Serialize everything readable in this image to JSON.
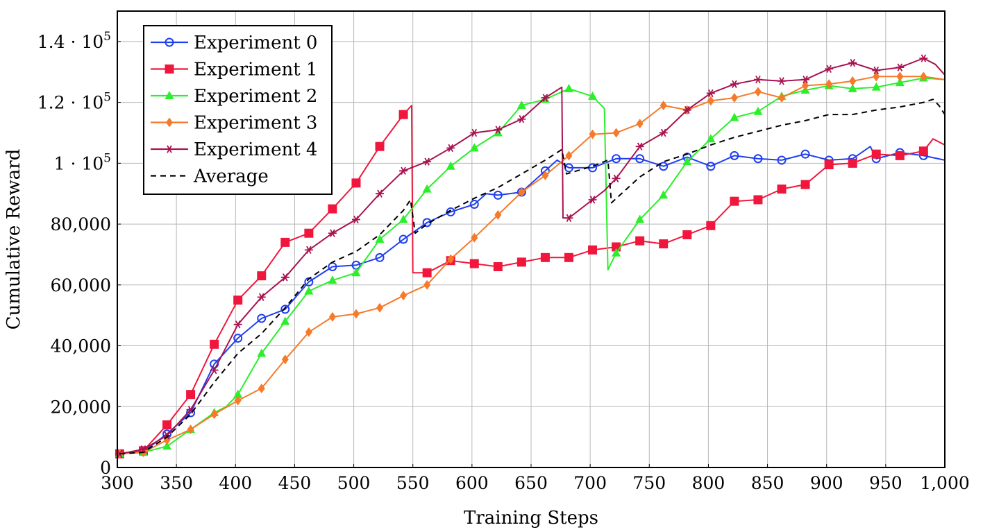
{
  "chart_data": {
    "type": "line",
    "title": "",
    "xlabel": "Training Steps",
    "ylabel": "Cumulative Reward",
    "xlim": [
      300,
      1000
    ],
    "ylim": [
      0,
      150000
    ],
    "grid": true,
    "legend_position": "top-left",
    "x_ticks": [
      300,
      350,
      400,
      450,
      500,
      550,
      600,
      650,
      700,
      750,
      800,
      850,
      900,
      950,
      1000
    ],
    "x_tick_labels": [
      "300",
      "350",
      "400",
      "450",
      "500",
      "550",
      "600",
      "650",
      "700",
      "750",
      "800",
      "850",
      "900",
      "950",
      "1,000"
    ],
    "y_ticks": [
      0,
      20000,
      40000,
      60000,
      80000,
      100000,
      120000,
      140000
    ],
    "y_tick_labels": [
      {
        "text": "0"
      },
      {
        "text": "20,000"
      },
      {
        "text": "40,000"
      },
      {
        "text": "60,000"
      },
      {
        "text": "80,000"
      },
      {
        "mantissa": "1 · 10",
        "exp": "5"
      },
      {
        "mantissa": "1.2 · 10",
        "exp": "5"
      },
      {
        "mantissa": "1.4 · 10",
        "exp": "5"
      }
    ],
    "series": [
      {
        "name": "Experiment 0",
        "color": "#1f3ff0",
        "marker": "circle",
        "dash": "",
        "points": [
          [
            302,
            4500
          ],
          [
            322,
            5200
          ],
          [
            342,
            11000
          ],
          [
            362,
            18000
          ],
          [
            382,
            34000
          ],
          [
            402,
            42500
          ],
          [
            422,
            49000
          ],
          [
            442,
            52000
          ],
          [
            462,
            61000
          ],
          [
            482,
            66000
          ],
          [
            502,
            66500
          ],
          [
            522,
            69000
          ],
          [
            542,
            75000
          ],
          [
            562,
            80500
          ],
          [
            582,
            84000
          ],
          [
            602,
            86500
          ],
          [
            612,
            90000
          ],
          [
            622,
            89500
          ],
          [
            642,
            90500
          ],
          [
            662,
            97500
          ],
          [
            672,
            101000
          ],
          [
            682,
            98500
          ],
          [
            702,
            98500
          ],
          [
            722,
            101500
          ],
          [
            742,
            101500
          ],
          [
            762,
            99000
          ],
          [
            782,
            102000
          ],
          [
            802,
            99000
          ],
          [
            822,
            102500
          ],
          [
            842,
            101500
          ],
          [
            862,
            101000
          ],
          [
            882,
            103000
          ],
          [
            902,
            101000
          ],
          [
            922,
            101500
          ],
          [
            937,
            105500
          ],
          [
            942,
            101500
          ],
          [
            962,
            103500
          ],
          [
            982,
            102500
          ],
          [
            1000,
            101000
          ]
        ]
      },
      {
        "name": "Experiment 1",
        "color": "#f0163c",
        "marker": "square",
        "dash": "",
        "points": [
          [
            302,
            4500
          ],
          [
            322,
            5500
          ],
          [
            342,
            14000
          ],
          [
            362,
            24000
          ],
          [
            382,
            40500
          ],
          [
            402,
            55000
          ],
          [
            422,
            63000
          ],
          [
            442,
            74000
          ],
          [
            462,
            77000
          ],
          [
            482,
            85000
          ],
          [
            502,
            93500
          ],
          [
            522,
            105500
          ],
          [
            542,
            116000
          ],
          [
            549,
            119000
          ],
          [
            550,
            64000
          ],
          [
            562,
            64000
          ],
          [
            582,
            68000
          ],
          [
            602,
            67000
          ],
          [
            622,
            66000
          ],
          [
            642,
            67500
          ],
          [
            662,
            69000
          ],
          [
            682,
            69000
          ],
          [
            702,
            71500
          ],
          [
            722,
            72500
          ],
          [
            742,
            74500
          ],
          [
            762,
            73500
          ],
          [
            782,
            76500
          ],
          [
            802,
            79500
          ],
          [
            822,
            87500
          ],
          [
            842,
            88000
          ],
          [
            862,
            91500
          ],
          [
            882,
            93000
          ],
          [
            902,
            99500
          ],
          [
            922,
            100000
          ],
          [
            942,
            103000
          ],
          [
            962,
            102500
          ],
          [
            982,
            104000
          ],
          [
            990,
            108000
          ],
          [
            1000,
            106000
          ]
        ]
      },
      {
        "name": "Experiment 2",
        "color": "#2aef2a",
        "marker": "triangle",
        "dash": "",
        "points": [
          [
            302,
            4500
          ],
          [
            322,
            5000
          ],
          [
            342,
            7000
          ],
          [
            362,
            12500
          ],
          [
            382,
            18000
          ],
          [
            392,
            20000
          ],
          [
            402,
            24000
          ],
          [
            422,
            37500
          ],
          [
            442,
            48000
          ],
          [
            462,
            58000
          ],
          [
            482,
            61500
          ],
          [
            502,
            64000
          ],
          [
            522,
            75000
          ],
          [
            542,
            81500
          ],
          [
            562,
            91500
          ],
          [
            582,
            99000
          ],
          [
            602,
            105000
          ],
          [
            622,
            110000
          ],
          [
            642,
            119000
          ],
          [
            662,
            121000
          ],
          [
            682,
            124500
          ],
          [
            702,
            122000
          ],
          [
            712,
            118000
          ],
          [
            715,
            65000
          ],
          [
            722,
            70500
          ],
          [
            742,
            81500
          ],
          [
            762,
            89500
          ],
          [
            782,
            100500
          ],
          [
            802,
            108000
          ],
          [
            822,
            115000
          ],
          [
            842,
            117000
          ],
          [
            862,
            122000
          ],
          [
            882,
            124000
          ],
          [
            902,
            125500
          ],
          [
            922,
            124500
          ],
          [
            942,
            125000
          ],
          [
            962,
            126500
          ],
          [
            982,
            128000
          ],
          [
            1000,
            127500
          ]
        ]
      },
      {
        "name": "Experiment 3",
        "color": "#f57a2a",
        "marker": "diamond",
        "dash": "",
        "points": [
          [
            302,
            4500
          ],
          [
            322,
            5000
          ],
          [
            342,
            9000
          ],
          [
            362,
            12500
          ],
          [
            382,
            17500
          ],
          [
            402,
            22000
          ],
          [
            422,
            26000
          ],
          [
            442,
            35500
          ],
          [
            462,
            44500
          ],
          [
            482,
            49500
          ],
          [
            502,
            50500
          ],
          [
            522,
            52500
          ],
          [
            542,
            56500
          ],
          [
            562,
            60000
          ],
          [
            582,
            68500
          ],
          [
            602,
            75500
          ],
          [
            622,
            83000
          ],
          [
            642,
            90500
          ],
          [
            662,
            96000
          ],
          [
            682,
            102500
          ],
          [
            702,
            109500
          ],
          [
            722,
            110000
          ],
          [
            742,
            113000
          ],
          [
            762,
            119000
          ],
          [
            782,
            117500
          ],
          [
            802,
            120500
          ],
          [
            822,
            121500
          ],
          [
            842,
            123500
          ],
          [
            862,
            121500
          ],
          [
            882,
            125500
          ],
          [
            902,
            126000
          ],
          [
            922,
            127000
          ],
          [
            942,
            128500
          ],
          [
            962,
            128500
          ],
          [
            982,
            128500
          ],
          [
            1000,
            127500
          ]
        ]
      },
      {
        "name": "Experiment 4",
        "color": "#a8124f",
        "marker": "star",
        "dash": "",
        "points": [
          [
            302,
            4500
          ],
          [
            322,
            6000
          ],
          [
            342,
            10500
          ],
          [
            362,
            19000
          ],
          [
            382,
            32000
          ],
          [
            402,
            47000
          ],
          [
            422,
            56000
          ],
          [
            442,
            62500
          ],
          [
            462,
            71500
          ],
          [
            482,
            77000
          ],
          [
            502,
            81500
          ],
          [
            522,
            90000
          ],
          [
            542,
            97500
          ],
          [
            562,
            100500
          ],
          [
            582,
            105000
          ],
          [
            602,
            110000
          ],
          [
            622,
            111000
          ],
          [
            642,
            114500
          ],
          [
            662,
            121500
          ],
          [
            676,
            125000
          ],
          [
            677,
            82000
          ],
          [
            682,
            82000
          ],
          [
            702,
            88000
          ],
          [
            712,
            91000
          ],
          [
            722,
            95000
          ],
          [
            742,
            105500
          ],
          [
            762,
            110000
          ],
          [
            782,
            117500
          ],
          [
            802,
            123000
          ],
          [
            822,
            126000
          ],
          [
            842,
            127500
          ],
          [
            862,
            127000
          ],
          [
            882,
            127500
          ],
          [
            902,
            131000
          ],
          [
            922,
            133000
          ],
          [
            942,
            130500
          ],
          [
            962,
            131500
          ],
          [
            982,
            134500
          ],
          [
            992,
            132500
          ],
          [
            1000,
            129000
          ]
        ]
      },
      {
        "name": "Average",
        "color": "#000000",
        "marker": "none",
        "dash": "8,6",
        "points": [
          [
            302,
            4500
          ],
          [
            322,
            5000
          ],
          [
            342,
            10000
          ],
          [
            362,
            17500
          ],
          [
            382,
            28000
          ],
          [
            402,
            37500
          ],
          [
            422,
            44000
          ],
          [
            442,
            52500
          ],
          [
            462,
            62000
          ],
          [
            482,
            67500
          ],
          [
            502,
            71000
          ],
          [
            522,
            76500
          ],
          [
            542,
            84500
          ],
          [
            548,
            88000
          ],
          [
            552,
            77000
          ],
          [
            562,
            80000
          ],
          [
            582,
            84500
          ],
          [
            602,
            88500
          ],
          [
            622,
            92000
          ],
          [
            642,
            96500
          ],
          [
            662,
            101000
          ],
          [
            676,
            104500
          ],
          [
            680,
            96500
          ],
          [
            702,
            99000
          ],
          [
            715,
            101000
          ],
          [
            718,
            87000
          ],
          [
            742,
            95500
          ],
          [
            762,
            100500
          ],
          [
            782,
            103000
          ],
          [
            802,
            106000
          ],
          [
            822,
            108500
          ],
          [
            842,
            110500
          ],
          [
            862,
            112500
          ],
          [
            882,
            114000
          ],
          [
            902,
            116000
          ],
          [
            922,
            116000
          ],
          [
            942,
            117500
          ],
          [
            962,
            118500
          ],
          [
            982,
            120000
          ],
          [
            990,
            121000
          ],
          [
            995,
            119000
          ],
          [
            1000,
            116000
          ]
        ]
      }
    ]
  }
}
